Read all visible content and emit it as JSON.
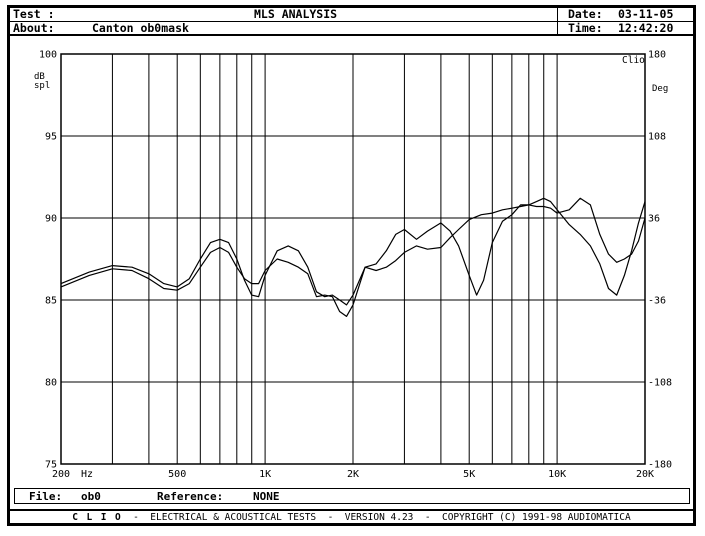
{
  "header": {
    "test_label": "Test :",
    "about_label": "About:",
    "about_value": "Canton ob0mask",
    "title": "MLS ANALYSIS",
    "date_label": "Date:",
    "date_value": "03-11-05",
    "time_label": "Time:",
    "time_value": "12:42:20"
  },
  "file_bar": {
    "file_label": "File:",
    "file_value": "ob0",
    "reference_label": "Reference:",
    "reference_value": "NONE"
  },
  "footer": {
    "brand": "CLIO",
    "text": "-  ELECTRICAL & ACOUSTICAL TESTS  -  VERSION 4.23  -  COPYRIGHT (C) 1991-98 AUDIOMATICA"
  },
  "chart_data": {
    "type": "line",
    "watermark": "Clio",
    "x_scale": "log",
    "xlim": [
      200,
      20000
    ],
    "x_ticks": [
      {
        "value": 200,
        "label": "200"
      },
      {
        "value": 500,
        "label": "500"
      },
      {
        "value": 1000,
        "label": "1K"
      },
      {
        "value": 2000,
        "label": "2K"
      },
      {
        "value": 5000,
        "label": "5K"
      },
      {
        "value": 10000,
        "label": "10K"
      },
      {
        "value": 20000,
        "label": "20K"
      }
    ],
    "x_unit": "Hz",
    "ylim": [
      75,
      100
    ],
    "ylabel_left": "dB spl",
    "y_ticks_left": [
      100,
      95,
      90,
      85,
      80,
      75
    ],
    "y2lim": [
      -180,
      180
    ],
    "ylabel_right": "Deg",
    "y_ticks_right": [
      180,
      108,
      36,
      -36,
      -108,
      -180
    ],
    "grid": true,
    "series": [
      {
        "points": [
          [
            200,
            86.0
          ],
          [
            250,
            86.7
          ],
          [
            300,
            87.1
          ],
          [
            350,
            87.0
          ],
          [
            400,
            86.6
          ],
          [
            450,
            86.0
          ],
          [
            500,
            85.8
          ],
          [
            550,
            86.3
          ],
          [
            600,
            87.5
          ],
          [
            650,
            88.5
          ],
          [
            700,
            88.7
          ],
          [
            750,
            88.5
          ],
          [
            800,
            87.5
          ],
          [
            850,
            86.2
          ],
          [
            900,
            85.3
          ],
          [
            950,
            85.2
          ],
          [
            1000,
            86.5
          ],
          [
            1100,
            88.0
          ],
          [
            1200,
            88.3
          ],
          [
            1300,
            88.0
          ],
          [
            1400,
            87.0
          ],
          [
            1500,
            85.5
          ],
          [
            1600,
            85.2
          ],
          [
            1700,
            85.3
          ],
          [
            1800,
            85.0
          ],
          [
            1900,
            84.7
          ],
          [
            2000,
            85.3
          ],
          [
            2200,
            87.0
          ],
          [
            2400,
            87.2
          ],
          [
            2600,
            88.0
          ],
          [
            2800,
            89.0
          ],
          [
            3000,
            89.3
          ],
          [
            3300,
            88.7
          ],
          [
            3600,
            89.2
          ],
          [
            4000,
            89.7
          ],
          [
            4300,
            89.2
          ],
          [
            4600,
            88.3
          ],
          [
            5000,
            86.5
          ],
          [
            5300,
            85.3
          ],
          [
            5600,
            86.2
          ],
          [
            6000,
            88.5
          ],
          [
            6500,
            89.8
          ],
          [
            7000,
            90.2
          ],
          [
            7500,
            90.8
          ],
          [
            8000,
            90.8
          ],
          [
            8500,
            91.0
          ],
          [
            9000,
            91.2
          ],
          [
            9500,
            91.0
          ],
          [
            10000,
            90.5
          ],
          [
            11000,
            89.6
          ],
          [
            12000,
            89.0
          ],
          [
            13000,
            88.3
          ],
          [
            14000,
            87.2
          ],
          [
            15000,
            85.7
          ],
          [
            16000,
            85.3
          ],
          [
            17000,
            86.5
          ],
          [
            18000,
            88.0
          ],
          [
            19000,
            89.7
          ],
          [
            20000,
            91.0
          ]
        ]
      },
      {
        "points": [
          [
            200,
            85.8
          ],
          [
            250,
            86.5
          ],
          [
            300,
            86.9
          ],
          [
            350,
            86.8
          ],
          [
            400,
            86.3
          ],
          [
            450,
            85.7
          ],
          [
            500,
            85.6
          ],
          [
            550,
            86.0
          ],
          [
            600,
            87.0
          ],
          [
            650,
            87.9
          ],
          [
            700,
            88.2
          ],
          [
            750,
            87.9
          ],
          [
            800,
            87.0
          ],
          [
            850,
            86.3
          ],
          [
            900,
            86.0
          ],
          [
            950,
            86.0
          ],
          [
            1000,
            86.8
          ],
          [
            1100,
            87.5
          ],
          [
            1200,
            87.3
          ],
          [
            1300,
            87.0
          ],
          [
            1400,
            86.6
          ],
          [
            1500,
            85.2
          ],
          [
            1600,
            85.3
          ],
          [
            1700,
            85.2
          ],
          [
            1800,
            84.3
          ],
          [
            1900,
            84.0
          ],
          [
            2000,
            84.7
          ],
          [
            2200,
            87.0
          ],
          [
            2400,
            86.8
          ],
          [
            2600,
            87.0
          ],
          [
            2800,
            87.4
          ],
          [
            3000,
            87.9
          ],
          [
            3300,
            88.3
          ],
          [
            3600,
            88.1
          ],
          [
            4000,
            88.2
          ],
          [
            4300,
            88.8
          ],
          [
            4600,
            89.3
          ],
          [
            5000,
            89.9
          ],
          [
            5500,
            90.2
          ],
          [
            6000,
            90.3
          ],
          [
            6500,
            90.5
          ],
          [
            7000,
            90.6
          ],
          [
            7500,
            90.7
          ],
          [
            8000,
            90.8
          ],
          [
            8500,
            90.7
          ],
          [
            9000,
            90.7
          ],
          [
            9500,
            90.6
          ],
          [
            10000,
            90.3
          ],
          [
            11000,
            90.5
          ],
          [
            12000,
            91.2
          ],
          [
            13000,
            90.8
          ],
          [
            14000,
            89.0
          ],
          [
            15000,
            87.8
          ],
          [
            16000,
            87.3
          ],
          [
            17000,
            87.5
          ],
          [
            18000,
            87.8
          ],
          [
            19000,
            88.6
          ],
          [
            20000,
            90.0
          ]
        ]
      }
    ]
  }
}
